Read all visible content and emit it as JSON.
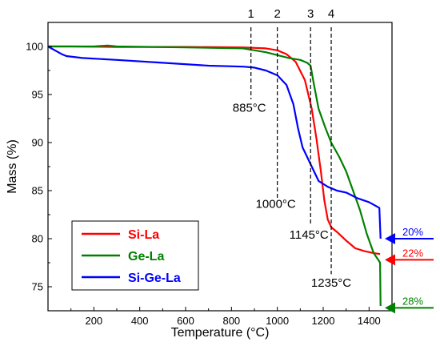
{
  "chart_data": {
    "type": "line",
    "xlabel": "Temperature (°C)",
    "ylabel": "Mass (%)",
    "xlim": [
      0,
      1500
    ],
    "ylim": [
      72.5,
      102.5
    ],
    "x_ticks": [
      200,
      400,
      600,
      800,
      1000,
      1200,
      1400
    ],
    "y_ticks": [
      75,
      80,
      85,
      90,
      95,
      100
    ],
    "grid": false,
    "legend_position": "bottom-left",
    "series": [
      {
        "name": "Si-La",
        "color": "#ff0000",
        "points": [
          [
            0,
            100
          ],
          [
            100,
            100
          ],
          [
            300,
            99.95
          ],
          [
            600,
            99.95
          ],
          [
            850,
            99.9
          ],
          [
            950,
            99.8
          ],
          [
            1000,
            99.6
          ],
          [
            1040,
            99.2
          ],
          [
            1080,
            98.4
          ],
          [
            1120,
            96.5
          ],
          [
            1150,
            93.5
          ],
          [
            1170,
            90.5
          ],
          [
            1190,
            87.0
          ],
          [
            1205,
            84.0
          ],
          [
            1220,
            82.0
          ],
          [
            1235,
            81.2
          ],
          [
            1260,
            80.7
          ],
          [
            1300,
            79.8
          ],
          [
            1340,
            79.0
          ],
          [
            1380,
            78.7
          ],
          [
            1420,
            78.5
          ],
          [
            1448,
            78.4
          ]
        ]
      },
      {
        "name": "Ge-La",
        "color": "#008000",
        "points": [
          [
            0,
            100
          ],
          [
            200,
            100
          ],
          [
            260,
            100.1
          ],
          [
            300,
            100
          ],
          [
            600,
            99.9
          ],
          [
            850,
            99.8
          ],
          [
            950,
            99.4
          ],
          [
            1000,
            99.1
          ],
          [
            1050,
            98.8
          ],
          [
            1100,
            98.6
          ],
          [
            1130,
            98.3
          ],
          [
            1145,
            98.0
          ],
          [
            1160,
            96.0
          ],
          [
            1180,
            93.5
          ],
          [
            1210,
            91.5
          ],
          [
            1235,
            90.0
          ],
          [
            1270,
            88.5
          ],
          [
            1300,
            87.0
          ],
          [
            1330,
            85.0
          ],
          [
            1360,
            83.0
          ],
          [
            1390,
            80.5
          ],
          [
            1420,
            78.5
          ],
          [
            1440,
            77.8
          ],
          [
            1448,
            77.5
          ],
          [
            1450,
            73.0
          ]
        ]
      },
      {
        "name": "Si-Ge-La",
        "color": "#0000ff",
        "points": [
          [
            0,
            100
          ],
          [
            30,
            99.6
          ],
          [
            60,
            99.2
          ],
          [
            80,
            99.0
          ],
          [
            150,
            98.8
          ],
          [
            300,
            98.6
          ],
          [
            500,
            98.3
          ],
          [
            700,
            98.0
          ],
          [
            850,
            97.9
          ],
          [
            900,
            97.8
          ],
          [
            950,
            97.5
          ],
          [
            1000,
            97.0
          ],
          [
            1040,
            96.0
          ],
          [
            1070,
            94.0
          ],
          [
            1090,
            91.5
          ],
          [
            1110,
            89.5
          ],
          [
            1140,
            88.0
          ],
          [
            1180,
            86.0
          ],
          [
            1220,
            85.4
          ],
          [
            1260,
            85.0
          ],
          [
            1300,
            84.8
          ],
          [
            1350,
            84.2
          ],
          [
            1400,
            83.8
          ],
          [
            1445,
            83.2
          ],
          [
            1450,
            80.0
          ]
        ]
      }
    ],
    "markers": [
      {
        "label": "1",
        "x": 885,
        "temp_label": "885°C"
      },
      {
        "label": "2",
        "x": 1000,
        "temp_label": "1000°C"
      },
      {
        "label": "3",
        "x": 1145,
        "temp_label": "1145°C"
      },
      {
        "label": "4",
        "x": 1235,
        "temp_label": "1235°C"
      }
    ],
    "residuals": [
      {
        "label": "20%",
        "y": 80.0,
        "color": "#0000ff"
      },
      {
        "label": "22%",
        "y": 77.8,
        "color": "#ff0000"
      },
      {
        "label": "28%",
        "y": 72.8,
        "color": "#008000"
      }
    ]
  }
}
